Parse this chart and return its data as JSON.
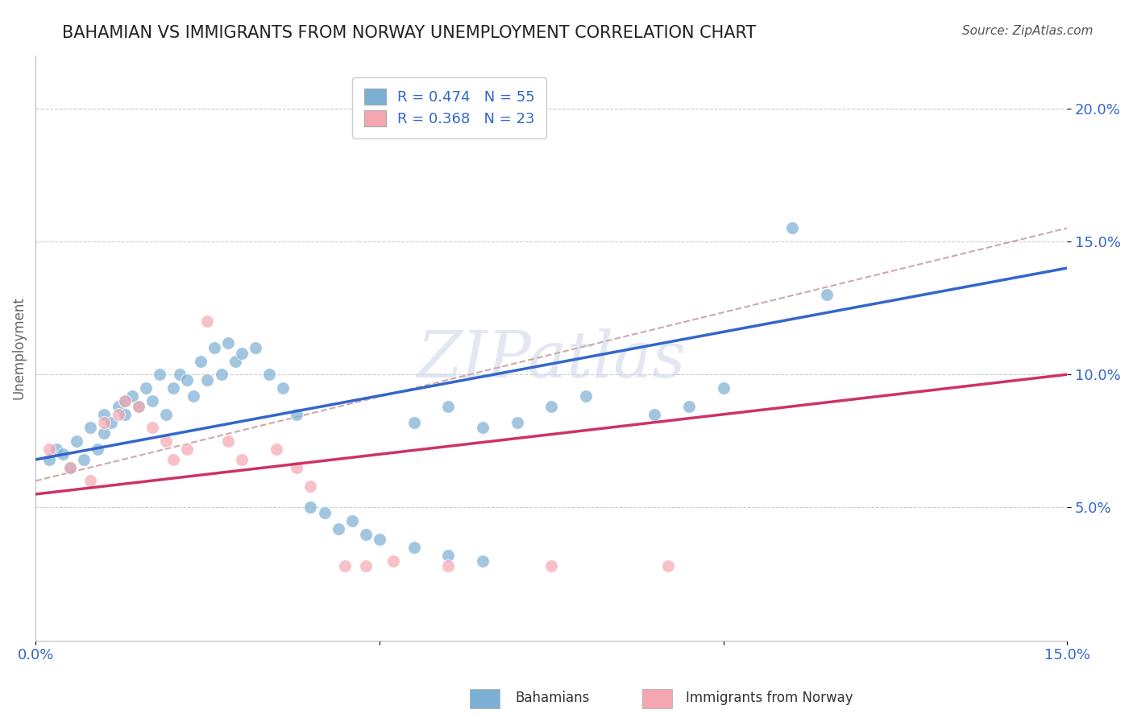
{
  "title": "BAHAMIAN VS IMMIGRANTS FROM NORWAY UNEMPLOYMENT CORRELATION CHART",
  "source": "Source: ZipAtlas.com",
  "ylabel": "Unemployment",
  "xlim": [
    0.0,
    0.15
  ],
  "ylim": [
    0.0,
    0.22
  ],
  "xticks": [
    0.0,
    0.05,
    0.1,
    0.15
  ],
  "xtick_labels": [
    "0.0%",
    "",
    "",
    "15.0%"
  ],
  "ytick_labels": [
    "5.0%",
    "10.0%",
    "15.0%",
    "20.0%"
  ],
  "ytick_vals": [
    0.05,
    0.1,
    0.15,
    0.2
  ],
  "grid_color": "#cccccc",
  "background_color": "#ffffff",
  "watermark": "ZIPatlas",
  "blue_color": "#7bafd4",
  "pink_color": "#f4a7b0",
  "blue_line_color": "#3366cc",
  "pink_line_color": "#cc3366",
  "dashed_line_color": "#ccaaaa",
  "legend_label_blue": "Bahamians",
  "legend_label_pink": "Immigrants from Norway",
  "blue_scatter_x": [
    0.002,
    0.003,
    0.004,
    0.005,
    0.006,
    0.007,
    0.008,
    0.009,
    0.01,
    0.01,
    0.011,
    0.012,
    0.013,
    0.013,
    0.014,
    0.015,
    0.016,
    0.017,
    0.018,
    0.019,
    0.02,
    0.021,
    0.022,
    0.023,
    0.024,
    0.025,
    0.026,
    0.027,
    0.028,
    0.029,
    0.03,
    0.032,
    0.034,
    0.036,
    0.038,
    0.04,
    0.042,
    0.044,
    0.046,
    0.048,
    0.05,
    0.055,
    0.06,
    0.065,
    0.07,
    0.075,
    0.08,
    0.09,
    0.095,
    0.1,
    0.055,
    0.06,
    0.065,
    0.11,
    0.115
  ],
  "blue_scatter_y": [
    0.068,
    0.072,
    0.07,
    0.065,
    0.075,
    0.068,
    0.08,
    0.072,
    0.085,
    0.078,
    0.082,
    0.088,
    0.09,
    0.085,
    0.092,
    0.088,
    0.095,
    0.09,
    0.1,
    0.085,
    0.095,
    0.1,
    0.098,
    0.092,
    0.105,
    0.098,
    0.11,
    0.1,
    0.112,
    0.105,
    0.108,
    0.11,
    0.1,
    0.095,
    0.085,
    0.05,
    0.048,
    0.042,
    0.045,
    0.04,
    0.038,
    0.082,
    0.088,
    0.08,
    0.082,
    0.088,
    0.092,
    0.085,
    0.088,
    0.095,
    0.035,
    0.032,
    0.03,
    0.155,
    0.13
  ],
  "pink_scatter_x": [
    0.002,
    0.005,
    0.008,
    0.01,
    0.012,
    0.013,
    0.015,
    0.017,
    0.019,
    0.02,
    0.022,
    0.025,
    0.028,
    0.03,
    0.035,
    0.038,
    0.04,
    0.045,
    0.048,
    0.052,
    0.06,
    0.075,
    0.092
  ],
  "pink_scatter_y": [
    0.072,
    0.065,
    0.06,
    0.082,
    0.085,
    0.09,
    0.088,
    0.08,
    0.075,
    0.068,
    0.072,
    0.12,
    0.075,
    0.068,
    0.072,
    0.065,
    0.058,
    0.028,
    0.028,
    0.03,
    0.028,
    0.028,
    0.028
  ],
  "blue_line_x": [
    0.0,
    0.15
  ],
  "blue_line_y": [
    0.068,
    0.14
  ],
  "pink_line_x": [
    0.0,
    0.15
  ],
  "pink_line_y": [
    0.055,
    0.1
  ],
  "dashed_line_x": [
    0.0,
    0.15
  ],
  "dashed_line_y": [
    0.06,
    0.155
  ]
}
